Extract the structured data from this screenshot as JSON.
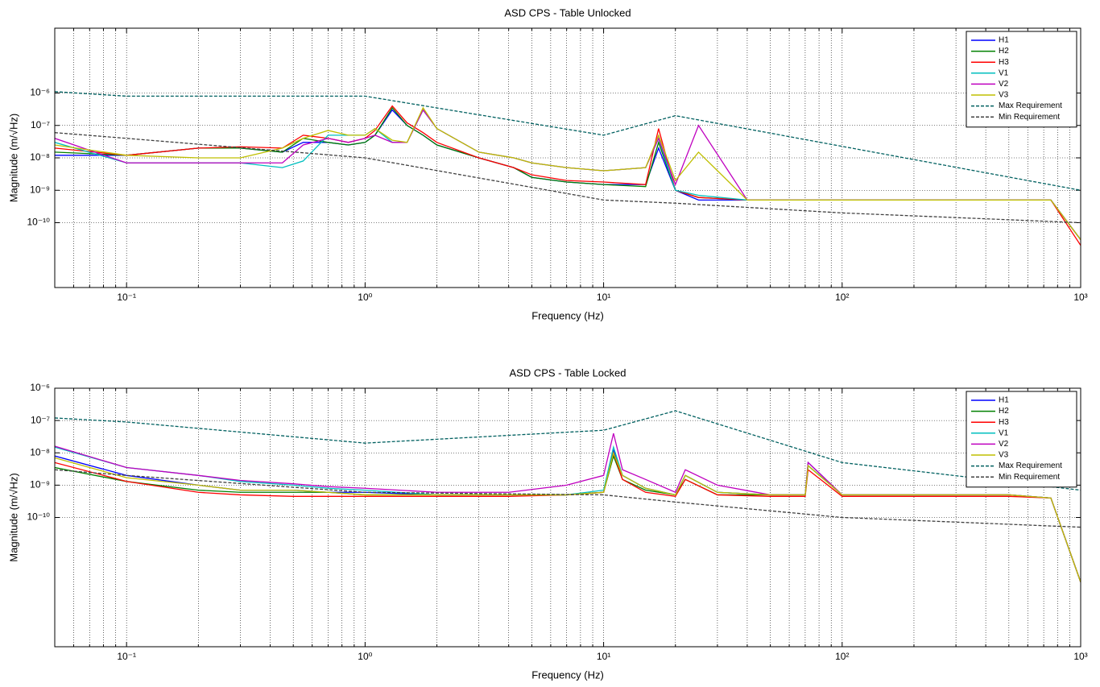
{
  "chart_data": [
    {
      "type": "line",
      "title": "ASD CPS - Table Unlocked",
      "xlabel": "Frequency (Hz)",
      "ylabel": "Magnitude (m/√Hz)",
      "xscale": "log",
      "yscale": "log",
      "grid": true,
      "legend": "upper right",
      "xlim": [
        0.05,
        1000
      ],
      "ylim": [
        1e-12,
        0.0001
      ],
      "xticks": [
        {
          "value": 0.1,
          "label": "10⁻¹"
        },
        {
          "value": 1,
          "label": "10⁰"
        },
        {
          "value": 10,
          "label": "10¹"
        },
        {
          "value": 100,
          "label": "10²"
        },
        {
          "value": 1000,
          "label": "10³"
        }
      ],
      "xminorticks": [
        0.06,
        0.07,
        0.08,
        0.09,
        0.2,
        0.3,
        0.4,
        0.5,
        0.6,
        0.7,
        0.8,
        0.9,
        2,
        3,
        4,
        5,
        6,
        7,
        8,
        9,
        20,
        30,
        40,
        50,
        60,
        70,
        80,
        90,
        200,
        300,
        400,
        500,
        600,
        700,
        800,
        900
      ],
      "yticks": [
        {
          "value": 1e-06,
          "label": "10⁻⁶"
        },
        {
          "value": 1e-07,
          "label": "10⁻⁷"
        },
        {
          "value": 1e-08,
          "label": "10⁻⁸"
        },
        {
          "value": 1e-09,
          "label": "10⁻⁹"
        },
        {
          "value": 1e-10,
          "label": "10⁻¹⁰"
        }
      ],
      "x": [
        0.05,
        0.1,
        0.2,
        0.3,
        0.45,
        0.55,
        0.7,
        0.85,
        1,
        1.1,
        1.3,
        1.5,
        1.75,
        2,
        3,
        4.2,
        5,
        7,
        10,
        15,
        17,
        20,
        25,
        40,
        100,
        400,
        750,
        1000
      ],
      "series": [
        {
          "name": "H1",
          "color": "#0000ff",
          "values": [
            1.2e-08,
            1.2e-08,
            2e-08,
            2e-08,
            1.5e-08,
            3e-08,
            3e-08,
            2.5e-08,
            3e-08,
            5e-08,
            3e-07,
            1e-07,
            5e-08,
            2.5e-08,
            1e-08,
            5e-09,
            2.5e-09,
            1.8e-09,
            1.5e-09,
            1.5e-09,
            2e-08,
            1e-09,
            5e-10,
            5e-10,
            5e-10,
            5e-10,
            5e-10,
            3e-11
          ]
        },
        {
          "name": "H2",
          "color": "#008000",
          "values": [
            1.5e-08,
            1.2e-08,
            2e-08,
            2e-08,
            1.5e-08,
            4e-08,
            3e-08,
            2.5e-08,
            3e-08,
            5e-08,
            3.5e-07,
            1e-07,
            5e-08,
            2.5e-08,
            1e-08,
            5e-09,
            2.5e-09,
            1.8e-09,
            1.5e-09,
            1.3e-09,
            3e-08,
            1e-09,
            6e-10,
            5e-10,
            5e-10,
            5e-10,
            5e-10,
            3e-11
          ]
        },
        {
          "name": "H3",
          "color": "#ff0000",
          "values": [
            2e-08,
            1.2e-08,
            2e-08,
            2.2e-08,
            2e-08,
            5e-08,
            4e-08,
            3e-08,
            4e-08,
            7e-08,
            4e-07,
            1.2e-07,
            6e-08,
            3e-08,
            1e-08,
            5e-09,
            3e-09,
            2e-09,
            1.8e-09,
            1.5e-09,
            8e-08,
            1e-09,
            6e-10,
            5e-10,
            5e-10,
            5e-10,
            5e-10,
            2e-11
          ]
        },
        {
          "name": "V1",
          "color": "#00bfbf",
          "values": [
            3e-08,
            7e-09,
            7e-09,
            7e-09,
            5e-09,
            8e-09,
            5e-08,
            5e-08,
            5e-08,
            8e-08,
            3e-08,
            3e-08,
            3e-07,
            8e-08,
            1.5e-08,
            1e-08,
            7e-09,
            5e-09,
            4e-09,
            5e-09,
            4e-08,
            1e-09,
            7e-10,
            5e-10,
            5e-10,
            5e-10,
            5e-10,
            3e-11
          ]
        },
        {
          "name": "V2",
          "color": "#bf00bf",
          "values": [
            4e-08,
            7e-09,
            7e-09,
            7e-09,
            7e-09,
            2.5e-08,
            4e-08,
            3e-08,
            4e-08,
            5e-08,
            3e-08,
            3e-08,
            3e-07,
            8e-08,
            1.5e-08,
            1e-08,
            7e-09,
            5e-09,
            4e-09,
            5e-09,
            4e-08,
            1.5e-09,
            1e-07,
            5e-10,
            5e-10,
            5e-10,
            5e-10,
            3e-11
          ]
        },
        {
          "name": "V3",
          "color": "#bfbf00",
          "values": [
            2.5e-08,
            1.2e-08,
            1e-08,
            1e-08,
            2e-08,
            4e-08,
            7e-08,
            5e-08,
            5e-08,
            8e-08,
            3.5e-08,
            3e-08,
            3.5e-07,
            8e-08,
            1.5e-08,
            1e-08,
            7e-09,
            5e-09,
            4e-09,
            5e-09,
            5e-08,
            2e-09,
            1.5e-08,
            5e-10,
            5e-10,
            5e-10,
            5e-10,
            3e-11
          ]
        },
        {
          "name": "Max Requirement",
          "color": "#006060",
          "dashed": true,
          "x": [
            0.05,
            0.1,
            1,
            10,
            20,
            1000
          ],
          "values": [
            1.1e-06,
            8e-07,
            8e-07,
            5e-08,
            2e-07,
            1e-09
          ]
        },
        {
          "name": "Min Requirement",
          "color": "#404040",
          "dashed": true,
          "x": [
            0.05,
            0.1,
            1,
            10,
            20,
            100,
            1000
          ],
          "values": [
            6e-08,
            4e-08,
            1e-08,
            5e-10,
            4e-10,
            2e-10,
            1e-10
          ]
        }
      ]
    },
    {
      "type": "line",
      "title": "ASD CPS - Table Locked",
      "xlabel": "Frequency (Hz)",
      "ylabel": "Magnitude (m/√Hz)",
      "xscale": "log",
      "yscale": "log",
      "grid": true,
      "legend": "upper right",
      "xlim": [
        0.05,
        1000
      ],
      "ylim": [
        1e-14,
        1e-06
      ],
      "xticks": [
        {
          "value": 0.1,
          "label": "10⁻¹"
        },
        {
          "value": 1,
          "label": "10⁰"
        },
        {
          "value": 10,
          "label": "10¹"
        },
        {
          "value": 100,
          "label": "10²"
        },
        {
          "value": 1000,
          "label": "10³"
        }
      ],
      "xminorticks": [
        0.06,
        0.07,
        0.08,
        0.09,
        0.2,
        0.3,
        0.4,
        0.5,
        0.6,
        0.7,
        0.8,
        0.9,
        2,
        3,
        4,
        5,
        6,
        7,
        8,
        9,
        20,
        30,
        40,
        50,
        60,
        70,
        80,
        90,
        200,
        300,
        400,
        500,
        600,
        700,
        800,
        900
      ],
      "yticks": [
        {
          "value": 1e-06,
          "label": "10⁻⁶"
        },
        {
          "value": 1e-07,
          "label": "10⁻⁷"
        },
        {
          "value": 1e-08,
          "label": "10⁻⁸"
        },
        {
          "value": 1e-09,
          "label": "10⁻⁹"
        },
        {
          "value": 1e-10,
          "label": "10⁻¹⁰"
        }
      ],
      "x": [
        0.05,
        0.1,
        0.2,
        0.3,
        0.5,
        0.7,
        1,
        2,
        4,
        7,
        10,
        11,
        12,
        15,
        20,
        22,
        30,
        50,
        70,
        72,
        100,
        200,
        500,
        750,
        1000
      ],
      "series": [
        {
          "name": "H1",
          "color": "#0000ff",
          "values": [
            8e-09,
            2e-09,
            1e-09,
            7e-10,
            7e-10,
            6e-10,
            6e-10,
            5e-10,
            5e-10,
            5e-10,
            6e-10,
            1.2e-08,
            2e-09,
            8e-10,
            5e-10,
            2e-09,
            6e-10,
            5e-10,
            5e-10,
            5e-09,
            5e-10,
            5e-10,
            5e-10,
            4e-10,
            1e-12
          ]
        },
        {
          "name": "H2",
          "color": "#008000",
          "values": [
            3.5e-09,
            1.3e-09,
            7e-10,
            6e-10,
            6e-10,
            6e-10,
            5e-10,
            5e-10,
            5e-10,
            5e-10,
            6e-10,
            8e-09,
            1.5e-09,
            7e-10,
            5e-10,
            1.5e-09,
            5e-10,
            5e-10,
            5e-10,
            4e-09,
            5e-10,
            5e-10,
            5e-10,
            4e-10,
            1e-12
          ]
        },
        {
          "name": "H3",
          "color": "#ff0000",
          "values": [
            5e-09,
            1.3e-09,
            6e-10,
            5e-10,
            4.5e-10,
            4.5e-10,
            4.5e-10,
            4.5e-10,
            4.5e-10,
            5e-10,
            6e-10,
            1e-08,
            1.5e-09,
            6e-10,
            4.5e-10,
            1.5e-09,
            5e-10,
            4.5e-10,
            4.5e-10,
            3e-09,
            4.5e-10,
            4.5e-10,
            4.5e-10,
            4e-10,
            1e-12
          ]
        },
        {
          "name": "V1",
          "color": "#00bfbf",
          "values": [
            1.5e-08,
            3.5e-09,
            2e-09,
            1.3e-09,
            1e-09,
            8e-10,
            7e-10,
            5e-10,
            5e-10,
            5e-10,
            7e-10,
            1.5e-08,
            2e-09,
            8e-10,
            5e-10,
            2e-09,
            6e-10,
            5e-10,
            5e-10,
            4e-09,
            5e-10,
            5e-10,
            5e-10,
            4e-10,
            1e-12
          ]
        },
        {
          "name": "V2",
          "color": "#bf00bf",
          "values": [
            1.6e-08,
            3.5e-09,
            2e-09,
            1.4e-09,
            1.1e-09,
            9e-10,
            8e-10,
            6e-10,
            6e-10,
            1e-09,
            2e-09,
            4e-08,
            3e-09,
            1.5e-09,
            6e-10,
            3e-09,
            1e-09,
            5e-10,
            5e-10,
            5e-09,
            5e-10,
            5e-10,
            5e-10,
            4e-10,
            1e-12
          ]
        },
        {
          "name": "V3",
          "color": "#bfbf00",
          "values": [
            7e-09,
            1.7e-09,
            1e-09,
            7e-10,
            7e-10,
            6e-10,
            5e-10,
            5e-10,
            5e-10,
            5e-10,
            6e-10,
            1e-08,
            2e-09,
            8e-10,
            5e-10,
            2e-09,
            6e-10,
            5e-10,
            5e-10,
            4e-09,
            5e-10,
            5e-10,
            5e-10,
            4e-10,
            1e-12
          ]
        },
        {
          "name": "Max Requirement",
          "color": "#006060",
          "dashed": true,
          "x": [
            0.05,
            0.1,
            1,
            10,
            20,
            100,
            1000
          ],
          "values": [
            1.2e-07,
            9e-08,
            2e-08,
            5e-08,
            2e-07,
            5e-09,
            7e-10
          ]
        },
        {
          "name": "Min Requirement",
          "color": "#404040",
          "dashed": true,
          "x": [
            0.05,
            0.1,
            1,
            10,
            20,
            100,
            1000
          ],
          "values": [
            3e-09,
            2e-09,
            6e-10,
            5e-10,
            3e-10,
            1e-10,
            5e-11
          ]
        }
      ]
    }
  ]
}
